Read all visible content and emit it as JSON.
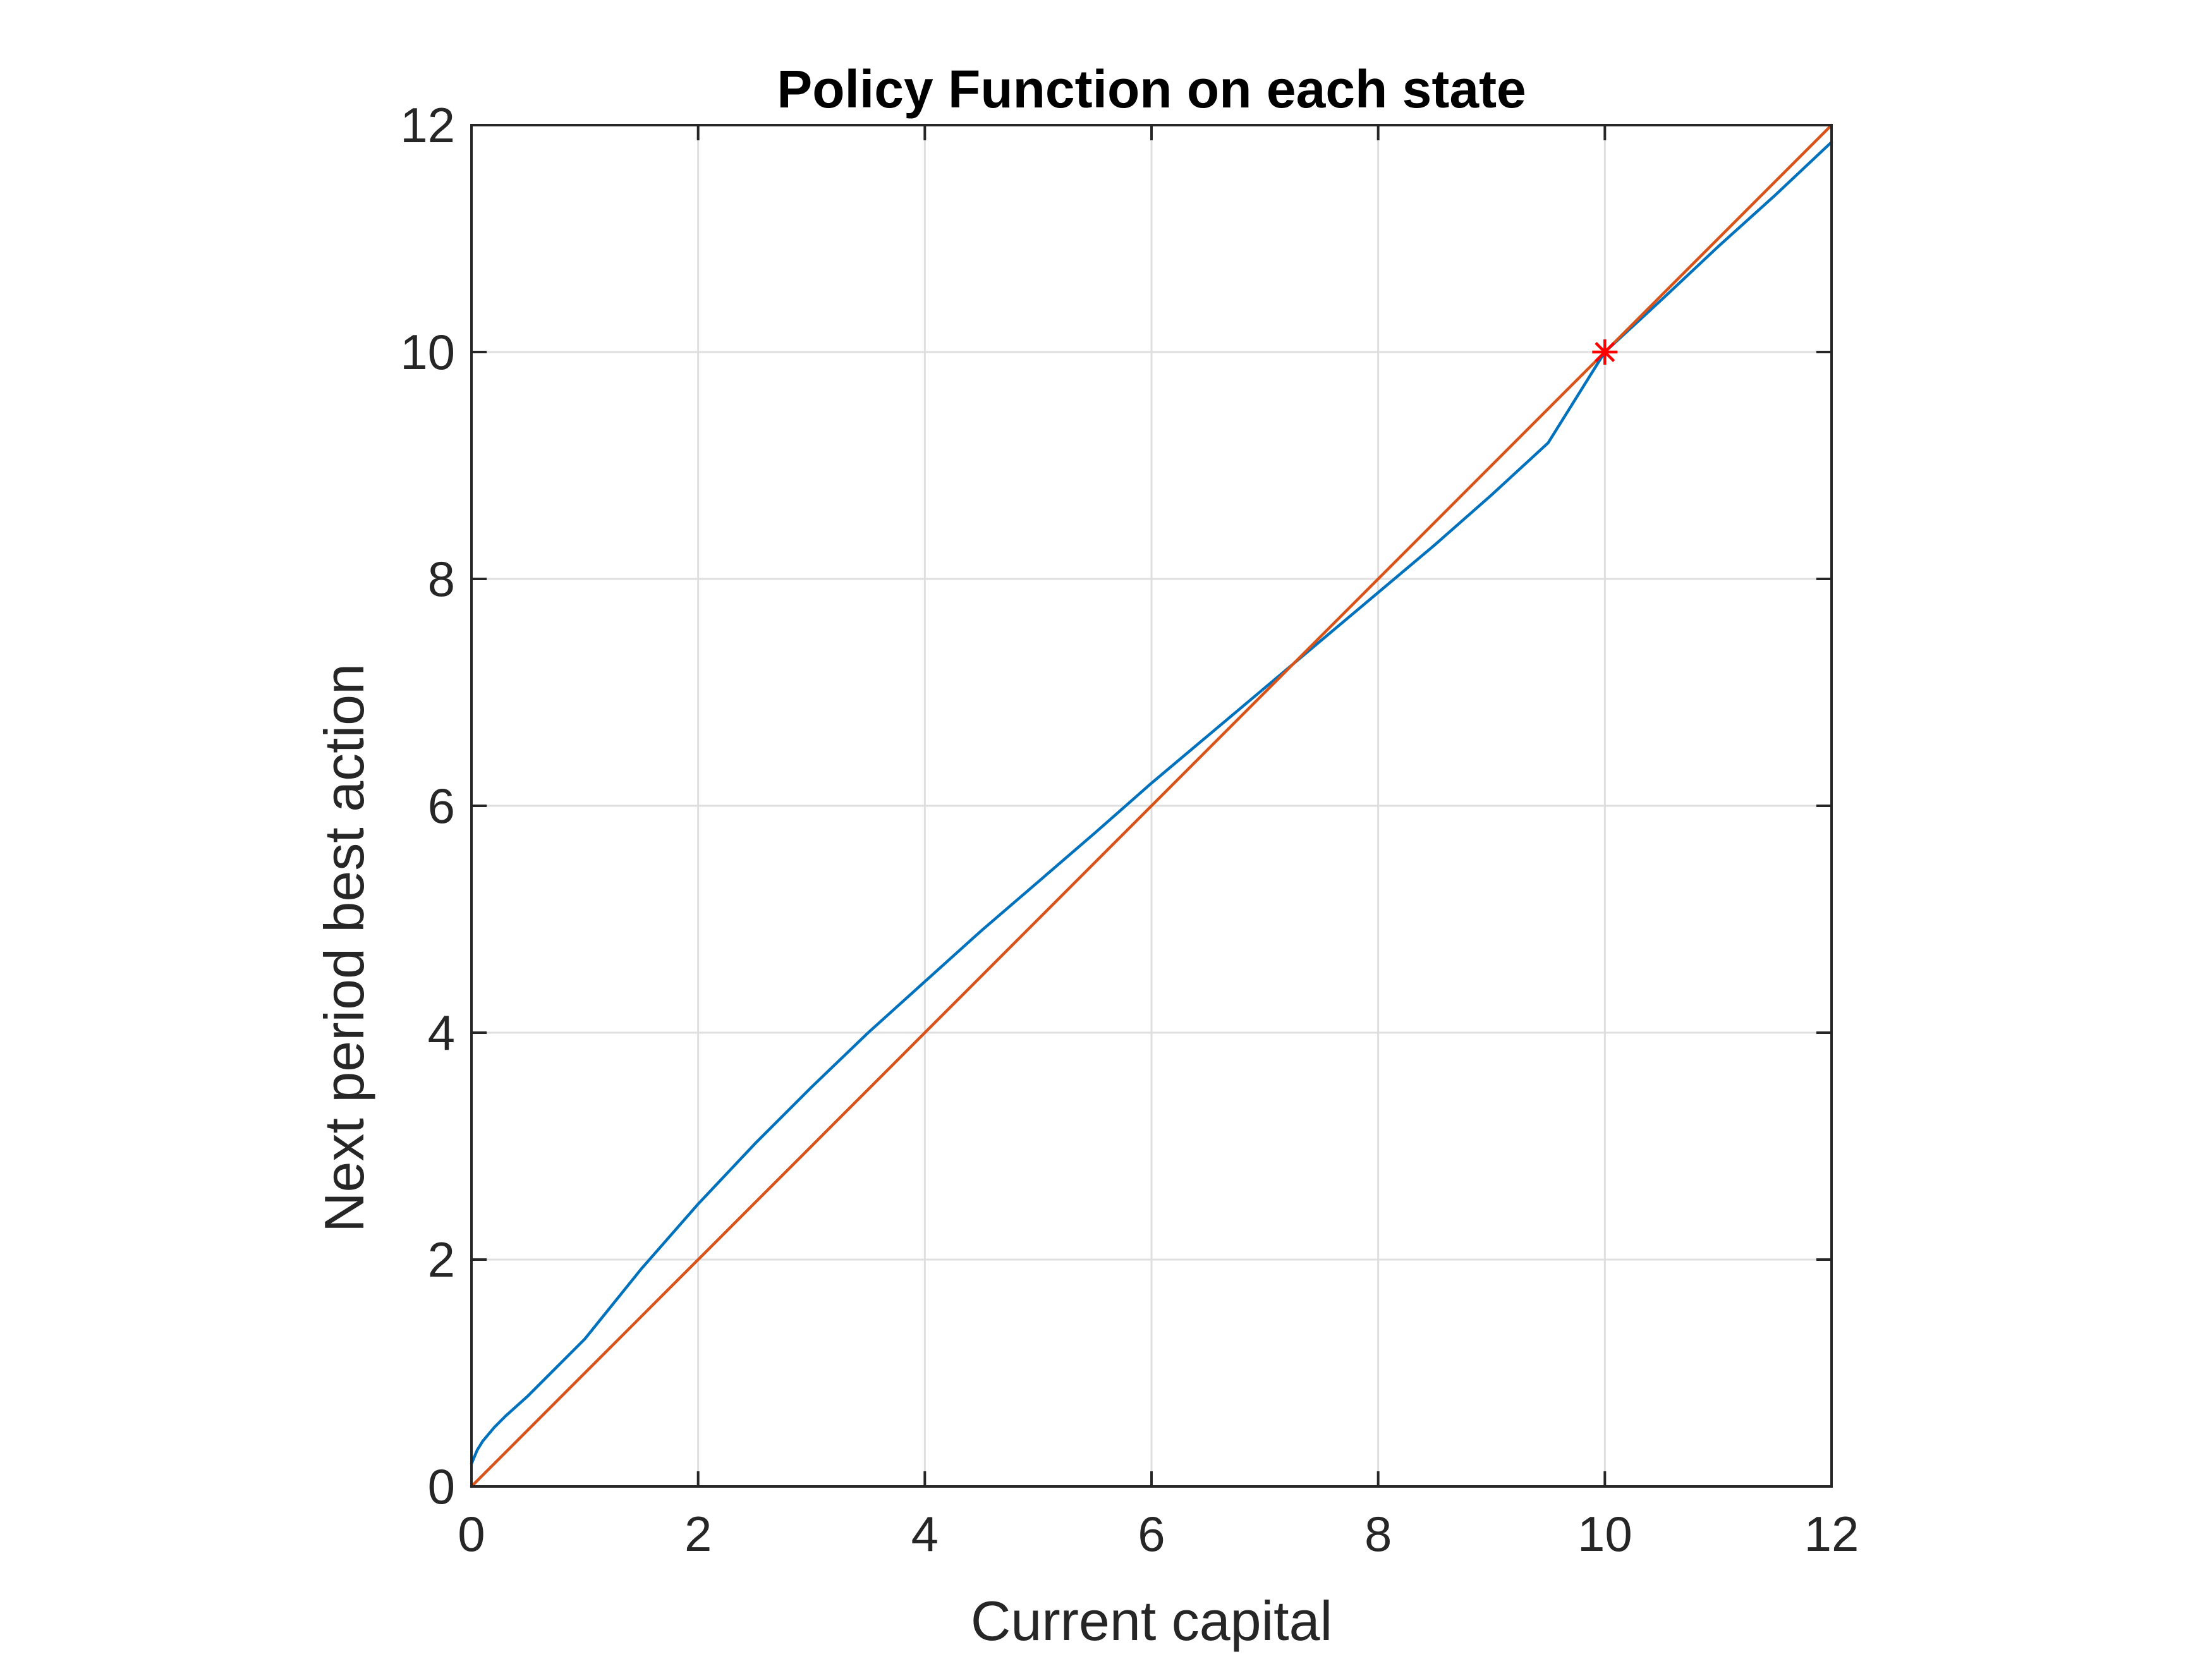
{
  "chart_data": {
    "type": "line",
    "title": "Policy Function on each state",
    "xlabel": "Current capital",
    "ylabel": "Next period best action",
    "xlim": [
      0,
      12
    ],
    "ylim": [
      0,
      12
    ],
    "xticks": [
      "0",
      "2",
      "4",
      "6",
      "8",
      "10",
      "12"
    ],
    "yticks": [
      "0",
      "2",
      "4",
      "6",
      "8",
      "10",
      "12"
    ],
    "grid": true,
    "legend": "none",
    "colors": {
      "policy": "#0072BD",
      "diagonal": "#D95319",
      "marker": "#FF0000",
      "grid": "#DFDFDF",
      "axes": "#262626"
    },
    "series": [
      {
        "x": [
          0,
          0.05,
          0.1,
          0.2,
          0.3,
          0.5,
          0.75,
          1,
          1.5,
          2,
          2.5,
          3,
          3.5,
          4,
          4.5,
          5,
          5.5,
          6,
          6.5,
          7,
          7.5,
          8,
          8.5,
          9,
          9.5,
          10,
          10.5,
          11,
          11.5,
          12
        ],
        "values": [
          0.2,
          0.32,
          0.4,
          0.52,
          0.62,
          0.8,
          1.05,
          1.3,
          1.92,
          2.49,
          3.02,
          3.52,
          4.0,
          4.45,
          4.9,
          5.33,
          5.76,
          6.2,
          6.62,
          7.04,
          7.46,
          7.88,
          8.3,
          8.74,
          9.2,
          10.0,
          10.46,
          10.93,
          11.38,
          11.85
        ]
      },
      {
        "x": [
          0,
          12
        ],
        "values": [
          0,
          12
        ]
      }
    ],
    "marker_point": {
      "x": 10,
      "y": 10,
      "symbol": "*"
    }
  }
}
